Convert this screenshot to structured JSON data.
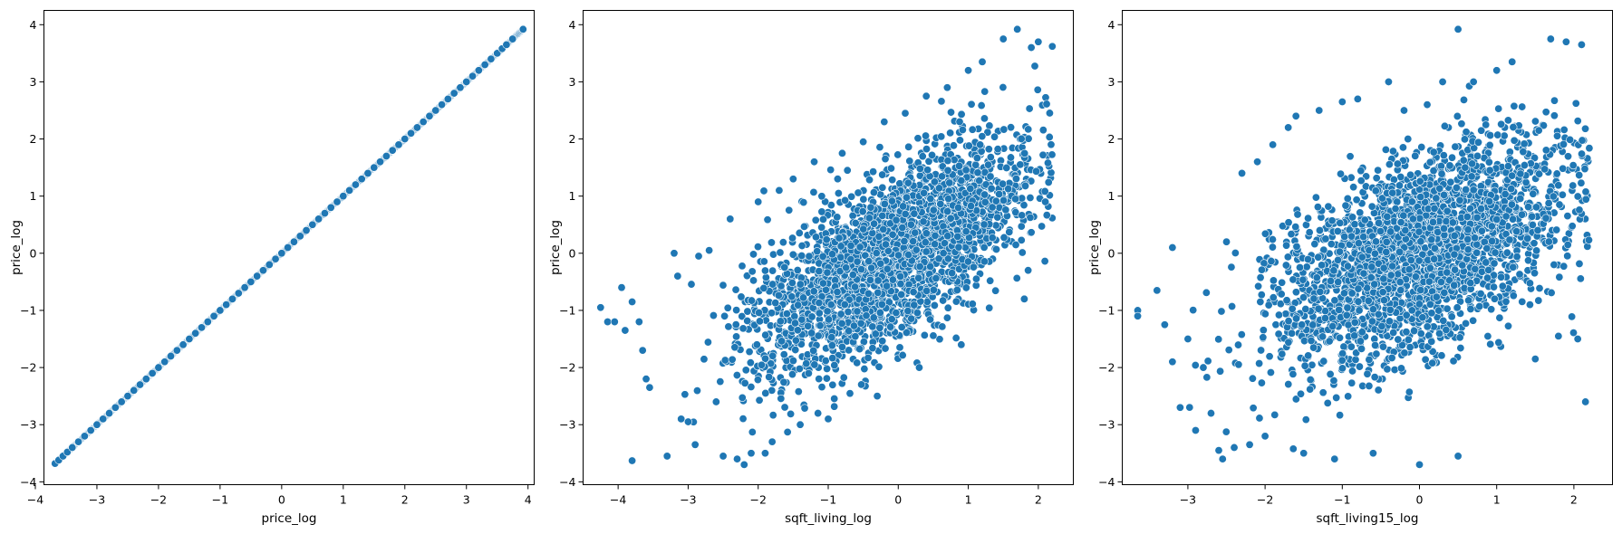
{
  "chart_data": [
    {
      "type": "scatter",
      "xlabel": "price_log",
      "ylabel": "price_log",
      "xlim": [
        -3.86,
        4.1
      ],
      "ylim": [
        -4.05,
        4.25
      ],
      "xticks": [
        -4,
        -3,
        -2,
        -1,
        0,
        1,
        2,
        3,
        4
      ],
      "xtick_labels": [
        "−4",
        "−3",
        "−2",
        "−1",
        "0",
        "1",
        "2",
        "3",
        "4"
      ],
      "yticks": [
        -4,
        -3,
        -2,
        -1,
        0,
        1,
        2,
        3,
        4
      ],
      "ytick_labels": [
        "−4",
        "−3",
        "−2",
        "−1",
        "0",
        "1",
        "2",
        "3",
        "4"
      ],
      "color": "#1f77b4",
      "grid": false,
      "relationship": "identity",
      "x_range": [
        -3.68,
        3.92
      ],
      "points": [
        [
          -3.68,
          -3.68
        ],
        [
          -3.62,
          -3.62
        ],
        [
          -3.55,
          -3.55
        ],
        [
          -3.48,
          -3.48
        ],
        [
          -3.4,
          -3.4
        ],
        [
          -3.3,
          -3.3
        ],
        [
          -3.2,
          -3.2
        ],
        [
          -3.1,
          -3.1
        ],
        [
          -3.0,
          -3.0
        ],
        [
          -2.9,
          -2.9
        ],
        [
          -2.8,
          -2.8
        ],
        [
          -2.7,
          -2.7
        ],
        [
          -2.6,
          -2.6
        ],
        [
          -2.5,
          -2.5
        ],
        [
          -2.4,
          -2.4
        ],
        [
          -2.3,
          -2.3
        ],
        [
          -2.2,
          -2.2
        ],
        [
          -2.1,
          -2.1
        ],
        [
          -2.0,
          -2.0
        ],
        [
          -1.9,
          -1.9
        ],
        [
          -1.8,
          -1.8
        ],
        [
          -1.7,
          -1.7
        ],
        [
          -1.6,
          -1.6
        ],
        [
          -1.5,
          -1.5
        ],
        [
          -1.4,
          -1.4
        ],
        [
          -1.3,
          -1.3
        ],
        [
          -1.2,
          -1.2
        ],
        [
          -1.1,
          -1.1
        ],
        [
          -1.0,
          -1.0
        ],
        [
          -0.9,
          -0.9
        ],
        [
          -0.8,
          -0.8
        ],
        [
          -0.7,
          -0.7
        ],
        [
          -0.6,
          -0.6
        ],
        [
          -0.5,
          -0.5
        ],
        [
          -0.4,
          -0.4
        ],
        [
          -0.3,
          -0.3
        ],
        [
          -0.2,
          -0.2
        ],
        [
          -0.1,
          -0.1
        ],
        [
          0.0,
          0.0
        ],
        [
          0.1,
          0.1
        ],
        [
          0.2,
          0.2
        ],
        [
          0.3,
          0.3
        ],
        [
          0.4,
          0.4
        ],
        [
          0.5,
          0.5
        ],
        [
          0.6,
          0.6
        ],
        [
          0.7,
          0.7
        ],
        [
          0.8,
          0.8
        ],
        [
          0.9,
          0.9
        ],
        [
          1.0,
          1.0
        ],
        [
          1.1,
          1.1
        ],
        [
          1.2,
          1.2
        ],
        [
          1.3,
          1.3
        ],
        [
          1.4,
          1.4
        ],
        [
          1.5,
          1.5
        ],
        [
          1.6,
          1.6
        ],
        [
          1.7,
          1.7
        ],
        [
          1.8,
          1.8
        ],
        [
          1.9,
          1.9
        ],
        [
          2.0,
          2.0
        ],
        [
          2.1,
          2.1
        ],
        [
          2.2,
          2.2
        ],
        [
          2.3,
          2.3
        ],
        [
          2.4,
          2.4
        ],
        [
          2.5,
          2.5
        ],
        [
          2.6,
          2.6
        ],
        [
          2.7,
          2.7
        ],
        [
          2.8,
          2.8
        ],
        [
          2.9,
          2.9
        ],
        [
          3.0,
          3.0
        ],
        [
          3.1,
          3.1
        ],
        [
          3.2,
          3.2
        ],
        [
          3.3,
          3.3
        ],
        [
          3.4,
          3.4
        ],
        [
          3.5,
          3.5
        ],
        [
          3.58,
          3.58
        ],
        [
          3.65,
          3.65
        ],
        [
          3.75,
          3.75
        ],
        [
          3.92,
          3.92
        ]
      ]
    },
    {
      "type": "scatter",
      "xlabel": "sqft_living_log",
      "ylabel": "price_log",
      "xlim": [
        -4.5,
        2.5
      ],
      "ylim": [
        -4.05,
        4.25
      ],
      "xticks": [
        -4,
        -3,
        -2,
        -1,
        0,
        1,
        2
      ],
      "xtick_labels": [
        "−4",
        "−3",
        "−2",
        "−1",
        "0",
        "1",
        "2"
      ],
      "yticks": [
        -4,
        -3,
        -2,
        -1,
        0,
        1,
        2,
        3,
        4
      ],
      "ytick_labels": [
        "−4",
        "−3",
        "−2",
        "−1",
        "0",
        "1",
        "2",
        "3",
        "4"
      ],
      "color": "#1f77b4",
      "grid": false,
      "relationship": "positive linear trend, slope ~0.7, dense cloud",
      "x_range": [
        -4.25,
        2.2
      ],
      "y_range": [
        -3.7,
        3.92
      ],
      "points": [
        [
          -4.25,
          -0.95
        ],
        [
          -4.15,
          -1.2
        ],
        [
          -4.05,
          -1.2
        ],
        [
          -3.95,
          -0.6
        ],
        [
          -3.9,
          -1.35
        ],
        [
          -3.8,
          -0.85
        ],
        [
          -3.7,
          -1.2
        ],
        [
          -3.65,
          -1.7
        ],
        [
          -3.6,
          -2.2
        ],
        [
          -3.55,
          -2.35
        ],
        [
          -3.8,
          -3.63
        ],
        [
          -3.3,
          -3.55
        ],
        [
          -3.2,
          0.0
        ],
        [
          -3.15,
          -0.4
        ],
        [
          -3.1,
          -2.9
        ],
        [
          -3.0,
          -2.95
        ],
        [
          -2.9,
          -3.35
        ],
        [
          -2.85,
          -0.05
        ],
        [
          -2.7,
          0.05
        ],
        [
          -2.6,
          -2.6
        ],
        [
          -2.5,
          -3.55
        ],
        [
          -2.4,
          0.6
        ],
        [
          -2.3,
          -3.6
        ],
        [
          -2.2,
          -3.7
        ],
        [
          -2.1,
          -3.5
        ],
        [
          -2.0,
          0.9
        ],
        [
          -1.9,
          -3.5
        ],
        [
          -1.8,
          -3.3
        ],
        [
          -1.7,
          1.1
        ],
        [
          -1.5,
          1.3
        ],
        [
          -1.4,
          -3.0
        ],
        [
          -1.2,
          1.6
        ],
        [
          -1.0,
          -2.9
        ],
        [
          -0.8,
          1.75
        ],
        [
          -0.5,
          1.95
        ],
        [
          -0.3,
          -2.5
        ],
        [
          -0.2,
          2.3
        ],
        [
          0.1,
          2.45
        ],
        [
          0.3,
          -2.0
        ],
        [
          0.4,
          2.75
        ],
        [
          0.7,
          2.9
        ],
        [
          0.9,
          -1.6
        ],
        [
          1.0,
          3.2
        ],
        [
          1.2,
          3.35
        ],
        [
          1.5,
          3.75
        ],
        [
          1.7,
          3.92
        ],
        [
          1.8,
          -0.8
        ],
        [
          1.9,
          3.6
        ],
        [
          2.0,
          3.7
        ],
        [
          2.1,
          0.9
        ],
        [
          2.2,
          3.62
        ]
      ]
    },
    {
      "type": "scatter",
      "xlabel": "sqft_living15_log",
      "ylabel": "price_log",
      "xlim": [
        -3.85,
        2.5
      ],
      "ylim": [
        -4.05,
        4.25
      ],
      "xticks": [
        -3,
        -2,
        -1,
        0,
        1,
        2
      ],
      "xtick_labels": [
        "−3",
        "−2",
        "−1",
        "0",
        "1",
        "2"
      ],
      "yticks": [
        -4,
        -3,
        -2,
        -1,
        0,
        1,
        2,
        3,
        4
      ],
      "ytick_labels": [
        "−4",
        "−3",
        "−2",
        "−1",
        "0",
        "1",
        "2",
        "3",
        "4"
      ],
      "color": "#1f77b4",
      "grid": false,
      "relationship": "positive linear trend, slope ~0.55, wider spread",
      "x_range": [
        -3.65,
        2.2
      ],
      "y_range": [
        -3.7,
        3.92
      ],
      "points": [
        [
          -3.65,
          -1.0
        ],
        [
          -3.65,
          -1.1
        ],
        [
          -3.4,
          -0.65
        ],
        [
          -3.3,
          -1.25
        ],
        [
          -3.2,
          -1.9
        ],
        [
          -3.2,
          0.1
        ],
        [
          -3.1,
          -2.7
        ],
        [
          -3.0,
          -1.5
        ],
        [
          -2.9,
          -3.1
        ],
        [
          -2.8,
          -2.0
        ],
        [
          -2.7,
          -2.8
        ],
        [
          -2.6,
          -3.45
        ],
        [
          -2.55,
          -3.6
        ],
        [
          -2.5,
          0.2
        ],
        [
          -2.4,
          -3.4
        ],
        [
          -2.3,
          1.4
        ],
        [
          -2.2,
          -3.35
        ],
        [
          -2.1,
          1.6
        ],
        [
          -2.0,
          -3.2
        ],
        [
          -1.9,
          1.9
        ],
        [
          -1.7,
          2.2
        ],
        [
          -1.6,
          2.4
        ],
        [
          -1.5,
          -3.5
        ],
        [
          -1.3,
          2.5
        ],
        [
          -1.1,
          -3.6
        ],
        [
          -1.0,
          2.65
        ],
        [
          -0.8,
          2.7
        ],
        [
          -0.6,
          -3.5
        ],
        [
          -0.4,
          3.0
        ],
        [
          -0.2,
          2.5
        ],
        [
          0.0,
          -3.7
        ],
        [
          0.1,
          2.6
        ],
        [
          0.3,
          3.0
        ],
        [
          0.5,
          3.92
        ],
        [
          0.5,
          -3.55
        ],
        [
          0.7,
          3.0
        ],
        [
          1.0,
          3.2
        ],
        [
          1.2,
          3.35
        ],
        [
          1.5,
          -1.85
        ],
        [
          1.7,
          3.75
        ],
        [
          1.8,
          -1.45
        ],
        [
          1.9,
          3.7
        ],
        [
          2.05,
          -1.5
        ],
        [
          2.1,
          3.65
        ],
        [
          2.15,
          -2.6
        ]
      ]
    }
  ]
}
